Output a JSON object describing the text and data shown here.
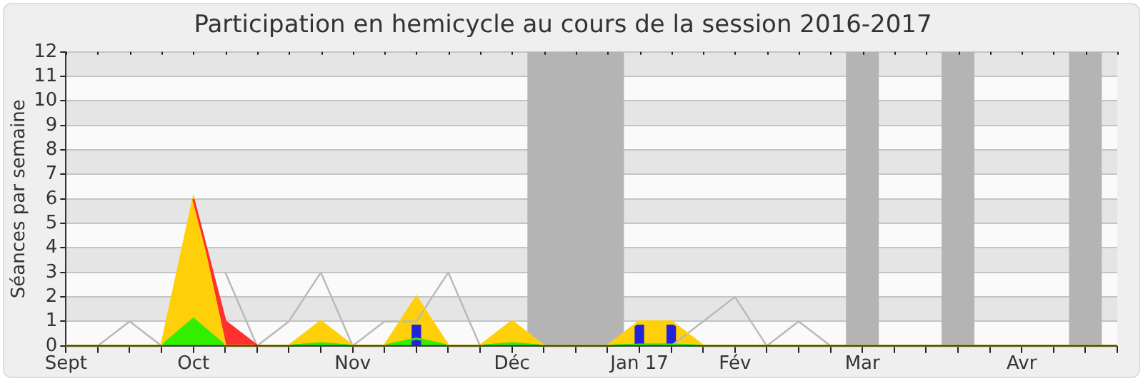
{
  "chart_data": {
    "type": "area",
    "title": "Participation en hemicycle au cours de la session 2016-2017",
    "ylabel": "Séances par semaine",
    "categories": [
      "Sept",
      null,
      null,
      null,
      "Oct",
      null,
      null,
      null,
      null,
      "Nov",
      null,
      null,
      null,
      null,
      "Déc",
      null,
      null,
      null,
      "Jan 17",
      null,
      null,
      "Fév",
      null,
      null,
      null,
      "Mar",
      null,
      null,
      null,
      null,
      "Avr",
      null,
      null,
      null
    ],
    "stacked": true,
    "ylim": [
      0,
      12
    ],
    "yticks": [
      0,
      1,
      2,
      3,
      4,
      5,
      6,
      7,
      8,
      9,
      10,
      11,
      12
    ],
    "grid": "y",
    "legend": false,
    "series": [
      {
        "type": "line",
        "color": "#b8b8b8",
        "values": [
          0,
          0,
          1,
          0,
          null,
          3,
          0,
          1,
          3,
          0,
          1,
          1,
          3,
          0,
          0,
          0,
          0,
          0,
          0,
          0,
          1,
          2,
          0,
          1,
          0,
          0,
          0,
          0,
          0,
          0,
          0,
          0,
          0,
          0
        ]
      },
      {
        "type": "bar",
        "color": "#2222dd",
        "values": [
          null,
          null,
          null,
          null,
          null,
          null,
          null,
          null,
          null,
          null,
          null,
          0.85,
          null,
          null,
          null,
          null,
          null,
          null,
          0.85,
          0.85,
          null,
          null,
          null,
          null,
          null,
          null,
          null,
          null,
          null,
          null,
          null,
          null,
          null,
          null
        ]
      },
      {
        "color": "#33ee00",
        "values": [
          0,
          0,
          0,
          0,
          1.1,
          0,
          0,
          0,
          0.1,
          0,
          0,
          0.3,
          0,
          0,
          0.1,
          0,
          0,
          0,
          0.05,
          0.05,
          0,
          0,
          0,
          0,
          0,
          0,
          0,
          0,
          0,
          0,
          0,
          0,
          0,
          0
        ]
      },
      {
        "color": "#ffd00a",
        "values": [
          0,
          0,
          0,
          0,
          4.9,
          0,
          0,
          0,
          0.9,
          0,
          0,
          1.7,
          0,
          0,
          0.9,
          0,
          0,
          0,
          0.95,
          0.95,
          0,
          0,
          0,
          0,
          0,
          0,
          0,
          0,
          0,
          0,
          0,
          0,
          0,
          0
        ]
      },
      {
        "color": "#ff3030",
        "values": [
          null,
          null,
          null,
          null,
          0,
          1,
          0,
          null,
          null,
          null,
          null,
          null,
          null,
          null,
          null,
          null,
          null,
          null,
          null,
          null,
          null,
          null,
          null,
          null,
          null,
          null,
          null,
          null,
          null,
          null,
          null,
          null,
          null,
          null
        ]
      },
      {
        "type": "bar",
        "color": "#b4b4b4",
        "values": [
          null,
          null,
          null,
          null,
          null,
          null,
          null,
          null,
          null,
          null,
          null,
          null,
          null,
          null,
          null,
          12,
          12,
          12,
          null,
          null,
          null,
          null,
          null,
          null,
          null,
          12,
          null,
          null,
          12,
          null,
          null,
          null,
          12,
          null
        ]
      }
    ]
  }
}
